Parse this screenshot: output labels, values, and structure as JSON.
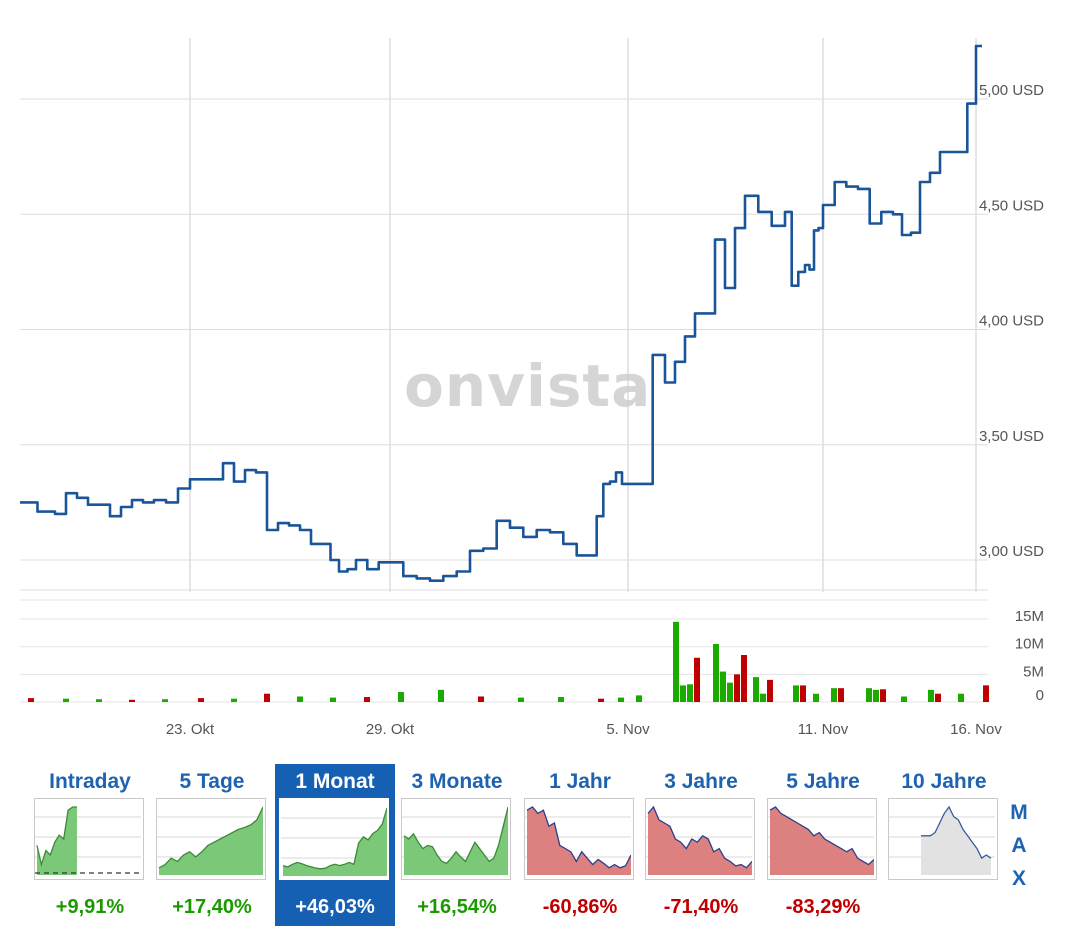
{
  "watermark": "onvista",
  "chart_data": [
    {
      "type": "line",
      "x_ticks": [
        "23. Okt",
        "29. Okt",
        "5. Nov",
        "11. Nov",
        "16. Nov"
      ],
      "y_ticks": [
        "3,00 USD",
        "3,50 USD",
        "4,00 USD",
        "4,50 USD",
        "5,00 USD"
      ],
      "y_tick_values": [
        3.0,
        3.5,
        4.0,
        4.5,
        5.0
      ],
      "ylim": [
        2.8,
        5.27
      ],
      "x_range": [
        "18. Okt",
        "16. Nov"
      ],
      "series": [
        {
          "color": "#1a559a",
          "x": [
            "18. Okt",
            "18. Okt",
            "19. Okt",
            "19. Okt",
            "19. Okt",
            "20. Okt",
            "20. Okt",
            "20. Okt",
            "21. Okt",
            "21. Okt",
            "21. Okt",
            "22. Okt",
            "22. Okt",
            "22. Okt",
            "23. Okt",
            "23. Okt",
            "23. Okt",
            "24. Okt",
            "24. Okt",
            "24. Okt",
            "25. Okt",
            "25. Okt",
            "25. Okt",
            "26. Okt",
            "26. Okt",
            "26. Okt",
            "27. Okt",
            "27. Okt",
            "27. Okt",
            "27. Okt",
            "28. Okt",
            "28. Okt",
            "28. Okt",
            "29. Okt",
            "29. Okt",
            "29. Okt",
            "30. Okt",
            "30. Okt",
            "30. Okt",
            "31. Okt",
            "31. Okt",
            "31. Okt",
            "1. Nov",
            "1. Nov",
            "1. Nov",
            "2. Nov",
            "2. Nov",
            "2. Nov",
            "3. Nov",
            "3. Nov",
            "3. Nov",
            "4. Nov",
            "4. Nov",
            "4. Nov",
            "5. Nov",
            "5. Nov",
            "5. Nov",
            "6. Nov",
            "6. Nov",
            "6. Nov",
            "6. Nov",
            "7. Nov",
            "7. Nov",
            "7. Nov",
            "7. Nov",
            "8. Nov",
            "8. Nov",
            "8. Nov",
            "9. Nov",
            "9. Nov",
            "9. Nov",
            "10. Nov",
            "10. Nov",
            "10. Nov",
            "10. Nov",
            "11. Nov",
            "11. Nov",
            "11. Nov",
            "12. Nov",
            "12. Nov",
            "12. Nov",
            "13. Nov",
            "13. Nov",
            "13. Nov",
            "14. Nov",
            "14. Nov",
            "14. Nov",
            "15. Nov",
            "15. Nov",
            "15. Nov",
            "16. Nov",
            "16. Nov"
          ],
          "values": [
            3.25,
            3.21,
            3.2,
            3.29,
            3.27,
            3.24,
            3.24,
            3.19,
            3.23,
            3.26,
            3.25,
            3.26,
            3.25,
            3.31,
            3.35,
            3.35,
            3.35,
            3.42,
            3.34,
            3.39,
            3.38,
            3.13,
            3.16,
            3.15,
            3.13,
            3.07,
            3.07,
            3.0,
            2.95,
            2.96,
            3.0,
            2.96,
            2.99,
            2.99,
            2.93,
            2.92,
            2.91,
            2.93,
            2.95,
            3.04,
            3.05,
            3.17,
            3.14,
            3.1,
            3.13,
            3.12,
            3.07,
            3.02,
            3.02,
            3.19,
            3.33,
            3.34,
            3.38,
            3.33,
            3.33,
            3.33,
            3.89,
            3.77,
            3.86,
            3.97,
            4.07,
            4.07,
            4.39,
            4.18,
            4.44,
            4.58,
            4.51,
            4.45,
            4.51,
            4.19,
            4.25,
            4.28,
            4.26,
            4.43,
            4.44,
            4.54,
            4.64,
            4.62,
            4.61,
            4.46,
            4.51,
            4.5,
            4.41,
            4.42,
            4.64,
            4.68,
            4.77,
            4.77,
            4.77,
            4.98,
            5.23,
            5.23
          ]
        }
      ]
    },
    {
      "type": "bar",
      "y_ticks": [
        "0",
        "5M",
        "10M",
        "15M"
      ],
      "y_tick_values": [
        0,
        5,
        10,
        15
      ],
      "ylim": [
        0,
        17
      ],
      "unit": "M",
      "series": [
        {
          "name": "",
          "x": [
            "18. Okt",
            "19. Okt",
            "20. Okt",
            "21. Okt",
            "22. Okt",
            "23. Okt",
            "24. Okt",
            "25. Okt",
            "26. Okt",
            "27. Okt",
            "28. Okt",
            "29. Okt",
            "30. Okt",
            "31. Okt",
            "1. Nov",
            "2. Nov",
            "3. Nov",
            "4. Nov",
            "5. Nov",
            "6. Nov",
            "6. Nov",
            "6. Nov",
            "7. Nov",
            "7. Nov",
            "7. Nov",
            "8. Nov",
            "8. Nov",
            "9. Nov",
            "10. Nov",
            "11. Nov",
            "12. Nov",
            "12. Nov",
            "13. Nov",
            "14. Nov",
            "15. Nov",
            "16. Nov"
          ],
          "values": [
            0.7,
            0.6,
            0.5,
            0.4,
            0.5,
            0.7,
            0.6,
            1.5,
            1.0,
            0.8,
            0.9,
            1.8,
            2.2,
            1.0,
            0.8,
            0.9,
            0.6,
            0.8,
            1.2,
            14.5,
            3.0,
            3.2,
            10.5,
            5.5,
            3.5,
            4.5,
            1.5,
            3.0,
            1.5,
            2.5,
            2.5,
            2.2,
            1.0,
            2.2,
            1.5,
            3.0
          ],
          "colors": [
            "r",
            "g",
            "g",
            "r",
            "g",
            "r",
            "g",
            "r",
            "g",
            "g",
            "r",
            "g",
            "g",
            "r",
            "g",
            "g",
            "r",
            "g",
            "g",
            "g",
            "g",
            "g",
            "g",
            "g",
            "g",
            "g",
            "g",
            "g",
            "g",
            "g",
            "g",
            "g",
            "g",
            "g",
            "g",
            "g"
          ]
        },
        {
          "name": "",
          "x": [
            "6. Nov",
            "7. Nov",
            "7. Nov",
            "8. Nov",
            "9. Nov",
            "11. Nov",
            "12. Nov",
            "14. Nov",
            "16. Nov"
          ],
          "values": [
            8.0,
            5.0,
            8.5,
            4.0,
            3.0,
            2.5,
            2.3,
            1.5,
            3.0
          ],
          "colors": [
            "r",
            "r",
            "r",
            "r",
            "r",
            "r",
            "r",
            "r",
            "r"
          ]
        }
      ]
    },
    {
      "type": "area",
      "name": "Intraday",
      "values": [
        0.4,
        0.1,
        0.32,
        0.25,
        0.45,
        0.56,
        0.5,
        0.95,
        1.0,
        1.0
      ],
      "baseline_value": 0.02
    },
    {
      "type": "area",
      "name": "5 Tage",
      "values": [
        0.05,
        0.1,
        0.2,
        0.15,
        0.25,
        0.3,
        0.22,
        0.3,
        0.4,
        0.45,
        0.5,
        0.55,
        0.6,
        0.65,
        0.68,
        0.72,
        0.8,
        1.0
      ]
    },
    {
      "type": "area",
      "name": "1 Monat",
      "values": [
        0.1,
        0.08,
        0.12,
        0.15,
        0.13,
        0.1,
        0.08,
        0.06,
        0.05,
        0.06,
        0.1,
        0.12,
        0.1,
        0.12,
        0.15,
        0.12,
        0.45,
        0.55,
        0.5,
        0.6,
        0.65,
        0.75,
        1.0
      ]
    },
    {
      "type": "area",
      "name": "3 Monate",
      "values": [
        0.55,
        0.5,
        0.58,
        0.45,
        0.35,
        0.4,
        0.38,
        0.25,
        0.15,
        0.12,
        0.2,
        0.3,
        0.22,
        0.15,
        0.3,
        0.45,
        0.35,
        0.25,
        0.15,
        0.2,
        0.4,
        0.7,
        1.0
      ]
    },
    {
      "type": "area",
      "name": "1 Jahr",
      "values": [
        0.95,
        1.0,
        0.9,
        0.95,
        0.7,
        0.75,
        0.4,
        0.35,
        0.3,
        0.15,
        0.3,
        0.2,
        0.1,
        0.18,
        0.12,
        0.05,
        0.1,
        0.05,
        0.08,
        0.25
      ]
    },
    {
      "type": "area",
      "name": "3 Jahre",
      "values": [
        0.9,
        1.0,
        0.8,
        0.75,
        0.7,
        0.5,
        0.45,
        0.35,
        0.5,
        0.45,
        0.55,
        0.5,
        0.3,
        0.35,
        0.2,
        0.15,
        0.08,
        0.1,
        0.05,
        0.15
      ]
    },
    {
      "type": "area",
      "name": "5 Jahre",
      "values": [
        0.95,
        1.0,
        0.9,
        0.85,
        0.8,
        0.75,
        0.7,
        0.65,
        0.55,
        0.6,
        0.5,
        0.45,
        0.4,
        0.35,
        0.3,
        0.35,
        0.2,
        0.15,
        0.1,
        0.18
      ]
    },
    {
      "type": "area",
      "name": "10 Jahre",
      "values": [
        0.55,
        0.55,
        0.55,
        0.6,
        0.75,
        0.9,
        1.0,
        0.85,
        0.8,
        0.65,
        0.55,
        0.45,
        0.35,
        0.2,
        0.25,
        0.2
      ]
    }
  ],
  "periods": [
    {
      "label": "Intraday",
      "change": "+9,91%",
      "color": "#1a9a00",
      "fill": "#7bc879",
      "stroke": "#3d8a36"
    },
    {
      "label": "5 Tage",
      "change": "+17,40%",
      "color": "#1a9a00",
      "fill": "#7bc879",
      "stroke": "#3d8a36"
    },
    {
      "label": "1 Monat",
      "change": "+46,03%",
      "color": "#ffffff",
      "fill": "#7bc879",
      "stroke": "#3d8a36"
    },
    {
      "label": "3 Monate",
      "change": "+16,54%",
      "color": "#1a9a00",
      "fill": "#7bc879",
      "stroke": "#3d8a36"
    },
    {
      "label": "1 Jahr",
      "change": "-60,86%",
      "color": "#c00000",
      "fill": "#dd8080",
      "stroke": "#2a3f8a"
    },
    {
      "label": "3 Jahre",
      "change": "-71,40%",
      "color": "#c00000",
      "fill": "#dd8080",
      "stroke": "#2a3f8a"
    },
    {
      "label": "5 Jahre",
      "change": "-83,29%",
      "color": "#c00000",
      "fill": "#dd8080",
      "stroke": "#2a3f8a"
    },
    {
      "label": "10 Jahre",
      "change": "",
      "color": "#1a9a00",
      "fill": "#e2e2e2",
      "stroke": "#3a5aa0"
    }
  ],
  "active_period": "1 Monat",
  "max_tab": {
    "letters": [
      "M",
      "A",
      "X"
    ]
  },
  "colors": {
    "line": "#1a559a",
    "volume_up": "#1aaa00",
    "volume_down": "#c00000",
    "grid": "#dddddd",
    "accent": "#1660b4"
  }
}
